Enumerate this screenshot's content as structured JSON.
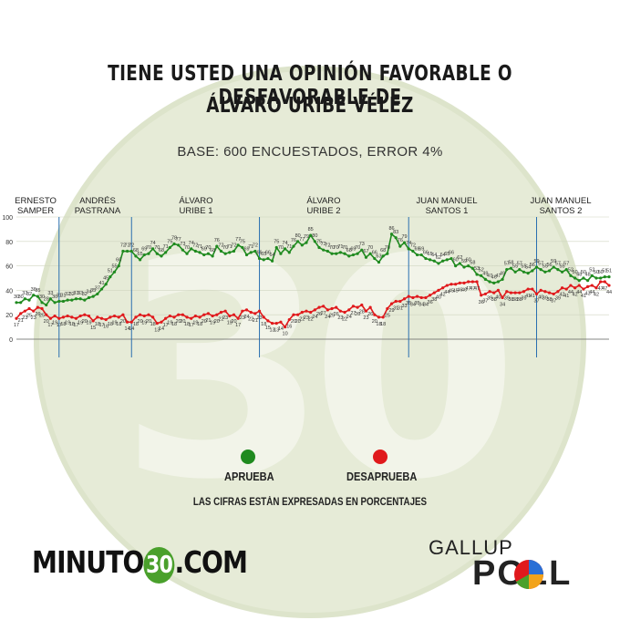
{
  "title_line1": "TIENE USTED UNA OPINIÓN FAVORABLE O DESFAVORABLE DE",
  "title_line2": "ÁLVARO URIBE VÉLEZ",
  "subtitle": "BASE: 600 ENCUESTADOS, ERROR 4%",
  "periods": [
    {
      "line1": "ERNESTO",
      "line2": "SAMPER"
    },
    {
      "line1": "ANDRÉS",
      "line2": "PASTRANA"
    },
    {
      "line1": "ÁLVARO",
      "line2": "URIBE 1"
    },
    {
      "line1": "ÁLVARO",
      "line2": "URIBE 2"
    },
    {
      "line1": "JUAN MANUEL",
      "line2": "SANTOS 1"
    },
    {
      "line1": "JUAN MANUEL",
      "line2": "SANTOS 2"
    }
  ],
  "legend": {
    "approve": "APRUEBA",
    "disapprove": "DESAPRUEBA",
    "approve_color": "#1f8a1f",
    "disapprove_color": "#e0191c"
  },
  "note": "LAS CIFRAS ESTÁN EXPRESADAS EN PORCENTAJES",
  "brand": {
    "left": "MINUTO",
    "num": "30",
    "right": ".COM"
  },
  "gallup": {
    "top": "GALLUP",
    "bottom": "POLL"
  },
  "chart_data": {
    "type": "line",
    "ylim": [
      0,
      100
    ],
    "yticks": [
      0,
      20,
      40,
      60,
      80,
      100
    ],
    "period_dividers": [
      10,
      27,
      57,
      92,
      122
    ],
    "series": [
      {
        "name": "APRUEBA",
        "values": [
          30,
          30,
          33,
          32,
          36,
          35,
          30,
          28,
          33,
          30,
          31,
          31,
          32,
          32,
          33,
          33,
          32,
          34,
          35,
          37,
          41,
          45,
          51,
          55,
          60,
          72,
          72,
          72,
          68,
          65,
          69,
          70,
          74,
          70,
          68,
          71,
          75,
          78,
          77,
          73,
          70,
          74,
          72,
          71,
          69,
          70,
          68,
          76,
          72,
          70,
          71,
          72,
          77,
          75,
          69,
          71,
          72,
          66,
          65,
          66,
          64,
          75,
          70,
          74,
          71,
          76,
          80,
          77,
          79,
          85,
          80,
          75,
          73,
          72,
          70,
          70,
          71,
          70,
          68,
          69,
          70,
          73,
          67,
          70,
          66,
          63,
          68,
          70,
          86,
          83,
          76,
          79,
          74,
          72,
          69,
          69,
          66,
          65,
          64,
          62,
          64,
          65,
          66,
          60,
          62,
          59,
          60,
          58,
          53,
          52,
          49,
          47,
          46,
          47,
          49,
          57,
          58,
          55,
          57,
          55,
          54,
          56,
          59,
          57,
          55,
          56,
          59,
          57,
          55,
          57,
          52,
          50,
          48,
          50,
          48,
          52,
          50,
          50,
          51,
          51
        ]
      },
      {
        "name": "DESAPRUEBA",
        "values": [
          17,
          21,
          23,
          25,
          23,
          26,
          25,
          20,
          17,
          19,
          17,
          18,
          19,
          18,
          17,
          19,
          20,
          19,
          15,
          18,
          17,
          16,
          18,
          19,
          18,
          20,
          14,
          14,
          18,
          20,
          19,
          20,
          18,
          13,
          14,
          17,
          19,
          18,
          20,
          20,
          18,
          17,
          19,
          18,
          20,
          21,
          19,
          20,
          22,
          23,
          19,
          20,
          17,
          23,
          24,
          22,
          21,
          23,
          18,
          15,
          13,
          13,
          14,
          10,
          16,
          20,
          20,
          22,
          23,
          22,
          24,
          26,
          27,
          24,
          25,
          26,
          23,
          22,
          24,
          27,
          26,
          28,
          23,
          26,
          20,
          18,
          18,
          25,
          29,
          31,
          31,
          33,
          35,
          34,
          35,
          34,
          34,
          36,
          38,
          40,
          42,
          44,
          45,
          45,
          46,
          46,
          47,
          47,
          47,
          36,
          37,
          39,
          38,
          40,
          34,
          39,
          38,
          38,
          38,
          39,
          41,
          41,
          37,
          40,
          39,
          38,
          37,
          39,
          42,
          41,
          44,
          42,
          44,
          41,
          43,
          44,
          42,
          47,
          47,
          44
        ]
      }
    ]
  }
}
